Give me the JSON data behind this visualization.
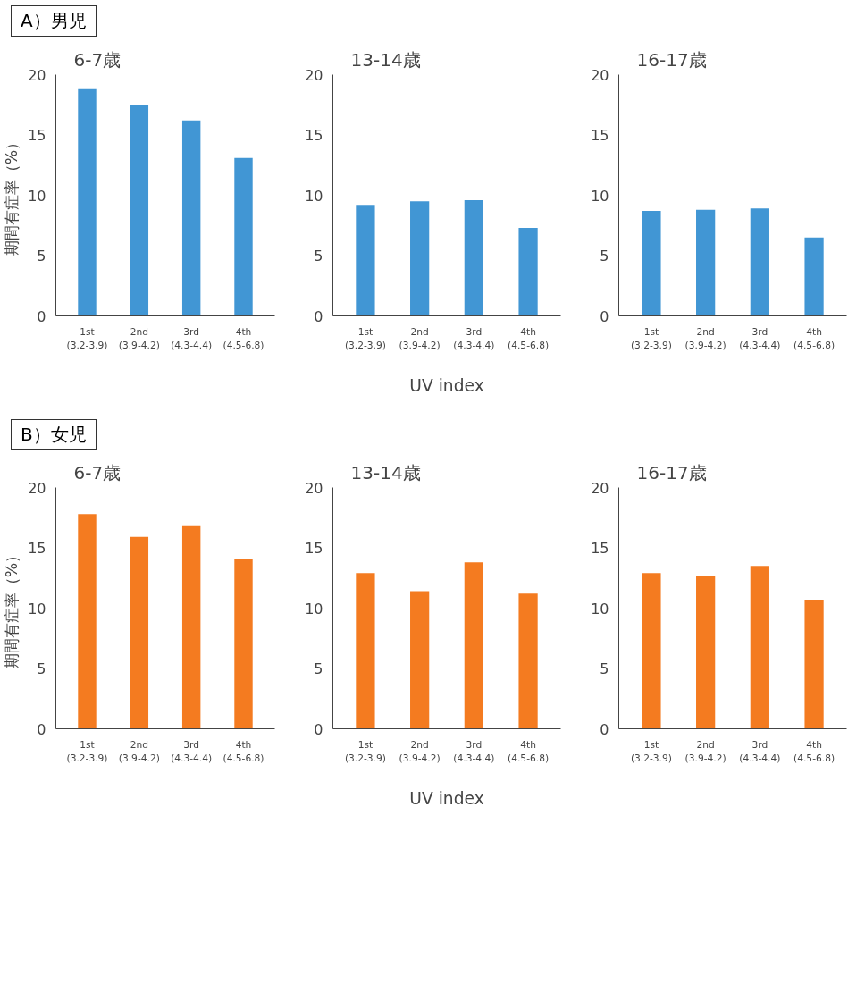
{
  "chart_data": [
    {
      "type": "bar",
      "title": "6-7歳",
      "ylabel": "期間有症率（%）",
      "annotations": [
        "A）男児"
      ],
      "categories": [
        "1st (3.2-3.9)",
        "2nd (3.9-4.2)",
        "3rd (4.3-4.4)",
        "4th (4.5-6.8)"
      ],
      "series": [
        {
          "color": "#4196d4",
          "values": [
            18.8,
            17.5,
            16.2,
            13.1
          ]
        }
      ],
      "ylim": [
        0,
        20
      ],
      "yticks": [
        0,
        5,
        10,
        15,
        20
      ],
      "grid": false
    },
    {
      "type": "bar",
      "title": "13-14歳",
      "xlabel": "UV index",
      "categories": [
        "1st (3.2-3.9)",
        "2nd (3.9-4.2)",
        "3rd (4.3-4.4)",
        "4th (4.5-6.8)"
      ],
      "series": [
        {
          "color": "#4196d4",
          "values": [
            9.2,
            9.5,
            9.6,
            7.3
          ]
        }
      ],
      "ylim": [
        0,
        20
      ],
      "yticks": [
        0,
        5,
        10,
        15,
        20
      ],
      "grid": false
    },
    {
      "type": "bar",
      "title": "16-17歳",
      "categories": [
        "1st (3.2-3.9)",
        "2nd (3.9-4.2)",
        "3rd (4.3-4.4)",
        "4th (4.5-6.8)"
      ],
      "series": [
        {
          "color": "#4196d4",
          "values": [
            8.7,
            8.8,
            8.9,
            6.5
          ]
        }
      ],
      "ylim": [
        0,
        20
      ],
      "yticks": [
        0,
        5,
        10,
        15,
        20
      ],
      "grid": false
    },
    {
      "type": "bar",
      "title": "6-7歳",
      "ylabel": "期間有症率（%）",
      "annotations": [
        "B）女児"
      ],
      "categories": [
        "1st (3.2-3.9)",
        "2nd (3.9-4.2)",
        "3rd (4.3-4.4)",
        "4th (4.5-6.8)"
      ],
      "series": [
        {
          "color": "#f47b20",
          "values": [
            17.8,
            15.9,
            16.8,
            14.1
          ]
        }
      ],
      "ylim": [
        0,
        20
      ],
      "yticks": [
        0,
        5,
        10,
        15,
        20
      ],
      "grid": false
    },
    {
      "type": "bar",
      "title": "13-14歳",
      "xlabel": "UV index",
      "categories": [
        "1st (3.2-3.9)",
        "2nd (3.9-4.2)",
        "3rd (4.3-4.4)",
        "4th (4.5-6.8)"
      ],
      "series": [
        {
          "color": "#f47b20",
          "values": [
            12.9,
            11.4,
            13.8,
            11.2
          ]
        }
      ],
      "ylim": [
        0,
        20
      ],
      "yticks": [
        0,
        5,
        10,
        15,
        20
      ],
      "grid": false
    },
    {
      "type": "bar",
      "title": "16-17歳",
      "categories": [
        "1st (3.2-3.9)",
        "2nd (3.9-4.2)",
        "3rd (4.3-4.4)",
        "4th (4.5-6.8)"
      ],
      "series": [
        {
          "color": "#f47b20",
          "values": [
            12.9,
            12.7,
            13.5,
            10.7
          ]
        }
      ],
      "ylim": [
        0,
        20
      ],
      "yticks": [
        0,
        5,
        10,
        15,
        20
      ],
      "grid": false
    }
  ]
}
